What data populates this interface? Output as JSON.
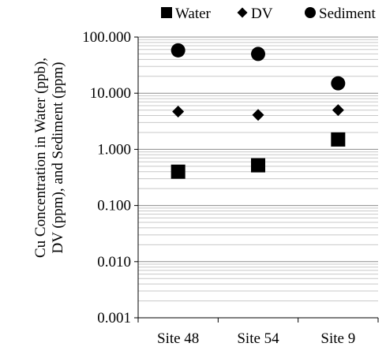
{
  "chart_data": {
    "type": "scatter",
    "title": "",
    "xlabel": "",
    "ylabel_lines": [
      "Cu Concentration in Water (ppb),",
      "DV (ppm), and Sediment (ppm)"
    ],
    "y_scale": "log",
    "ylim": [
      0.001,
      100
    ],
    "y_tick_labels": [
      "100.000",
      "10.000",
      "1.000",
      "0.100",
      "0.010",
      "0.001"
    ],
    "y_tick_values": [
      100,
      10,
      1,
      0.1,
      0.01,
      0.001
    ],
    "categories": [
      "Site 48",
      "Site 54",
      "Site 9"
    ],
    "grid": true,
    "grid_minor": true,
    "legend_position": "top",
    "series": [
      {
        "name": "Water",
        "marker": "square",
        "color": "#000000",
        "values": [
          0.4,
          0.52,
          1.5
        ]
      },
      {
        "name": "DV",
        "marker": "diamond",
        "color": "#000000",
        "values": [
          4.7,
          4.1,
          5.0
        ]
      },
      {
        "name": "Sediment",
        "marker": "circle",
        "color": "#000000",
        "values": [
          58,
          50,
          15
        ]
      }
    ]
  }
}
